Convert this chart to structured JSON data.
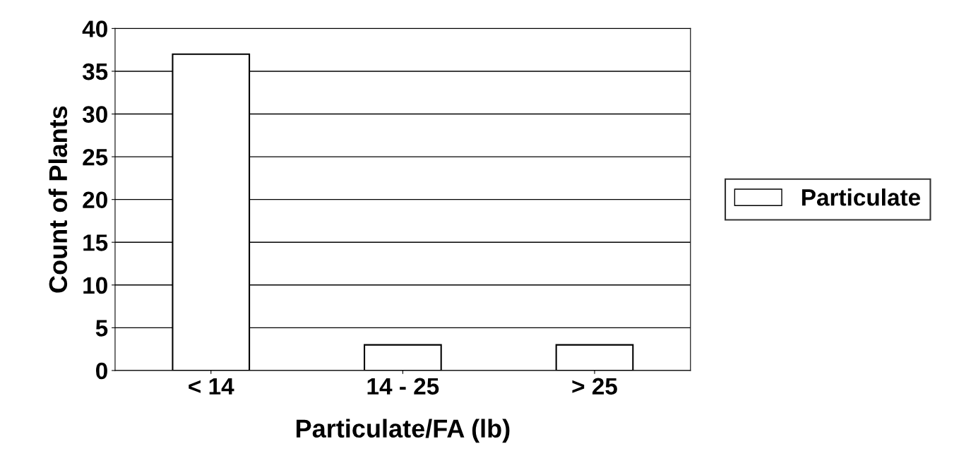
{
  "chart_data": {
    "type": "bar",
    "xlabel": "Particulate/FA (lb)",
    "ylabel": "Count of Plants",
    "categories": [
      "< 14",
      "14 - 25",
      "> 25"
    ],
    "series": [
      {
        "name": "Particulate",
        "color": "#ffffff",
        "values": [
          37,
          3,
          3
        ]
      }
    ],
    "ylim": [
      0,
      40
    ],
    "yticks": [
      0,
      5,
      10,
      15,
      20,
      25,
      30,
      35,
      40
    ],
    "grid": "y",
    "legend": "right"
  }
}
